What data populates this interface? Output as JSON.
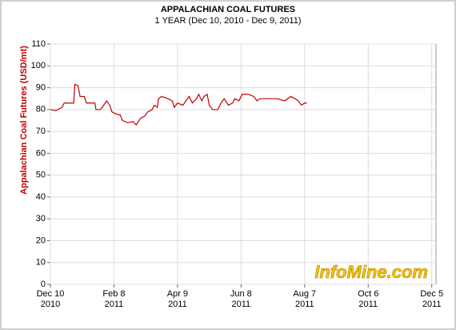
{
  "chart_data": {
    "type": "line",
    "title": "APPALACHIAN COAL FUTURES",
    "subtitle": "1 YEAR (Dec 10, 2010 - Dec 9, 2011)",
    "y_label": "Appalachian Coal Futures (USD/mt)",
    "watermark": "InfoMine.com",
    "x": [
      "2010-12-10",
      "2010-12-15",
      "2010-12-21",
      "2010-12-23",
      "2011-01-01",
      "2011-01-02",
      "2011-01-05",
      "2011-01-07",
      "2011-01-11",
      "2011-01-13",
      "2011-01-21",
      "2011-01-22",
      "2011-01-26",
      "2011-01-28",
      "2011-02-01",
      "2011-02-04",
      "2011-02-06",
      "2011-02-10",
      "2011-02-14",
      "2011-02-16",
      "2011-02-21",
      "2011-02-26",
      "2011-03-01",
      "2011-03-05",
      "2011-03-09",
      "2011-03-12",
      "2011-03-16",
      "2011-03-18",
      "2011-03-21",
      "2011-03-22",
      "2011-03-25",
      "2011-03-31",
      "2011-04-04",
      "2011-04-06",
      "2011-04-09",
      "2011-04-14",
      "2011-04-17",
      "2011-04-20",
      "2011-04-23",
      "2011-04-27",
      "2011-04-29",
      "2011-05-02",
      "2011-05-04",
      "2011-05-07",
      "2011-05-09",
      "2011-05-12",
      "2011-05-17",
      "2011-05-20",
      "2011-05-23",
      "2011-05-27",
      "2011-05-31",
      "2011-06-02",
      "2011-06-06",
      "2011-06-09",
      "2011-06-15",
      "2011-06-20",
      "2011-06-23",
      "2011-06-26",
      "2011-07-04",
      "2011-07-12",
      "2011-07-19",
      "2011-07-25",
      "2011-07-29",
      "2011-08-01",
      "2011-08-04",
      "2011-08-07",
      "2011-08-09"
    ],
    "series": [
      {
        "name": "Appalachian Coal Futures",
        "color": "#c00000",
        "values": [
          80,
          79.5,
          81,
          83,
          83,
          91.5,
          91,
          86,
          86,
          83,
          83,
          80,
          80,
          81,
          84,
          82,
          79,
          78,
          77.5,
          75,
          74,
          74.5,
          73,
          76,
          77,
          79,
          80,
          82,
          81,
          85,
          86,
          85,
          84,
          81,
          83,
          82,
          84,
          86,
          83,
          85,
          87,
          84,
          86,
          87,
          82,
          80,
          80,
          83,
          85,
          82,
          83,
          85,
          84,
          87,
          87,
          86,
          84,
          85,
          85,
          85,
          84,
          86,
          85,
          84,
          82,
          83,
          83
        ]
      }
    ],
    "xlim": [
      "2010-12-10",
      "2011-12-09"
    ],
    "xticks": [
      {
        "value": "2010-12-10",
        "label": "Dec 10",
        "year": "2010"
      },
      {
        "value": "2011-02-08",
        "label": "Feb 8",
        "year": "2011"
      },
      {
        "value": "2011-04-09",
        "label": "Apr 9",
        "year": "2011"
      },
      {
        "value": "2011-06-08",
        "label": "Jun 8",
        "year": "2011"
      },
      {
        "value": "2011-08-07",
        "label": "Aug 7",
        "year": "2011"
      },
      {
        "value": "2011-10-06",
        "label": "Oct 6",
        "year": "2011"
      },
      {
        "value": "2011-12-05",
        "label": "Dec 5",
        "year": "2011"
      }
    ],
    "ylim": [
      0,
      110
    ],
    "yticks": [
      0,
      10,
      20,
      30,
      40,
      50,
      60,
      70,
      80,
      90,
      100,
      110
    ],
    "grid": true
  }
}
